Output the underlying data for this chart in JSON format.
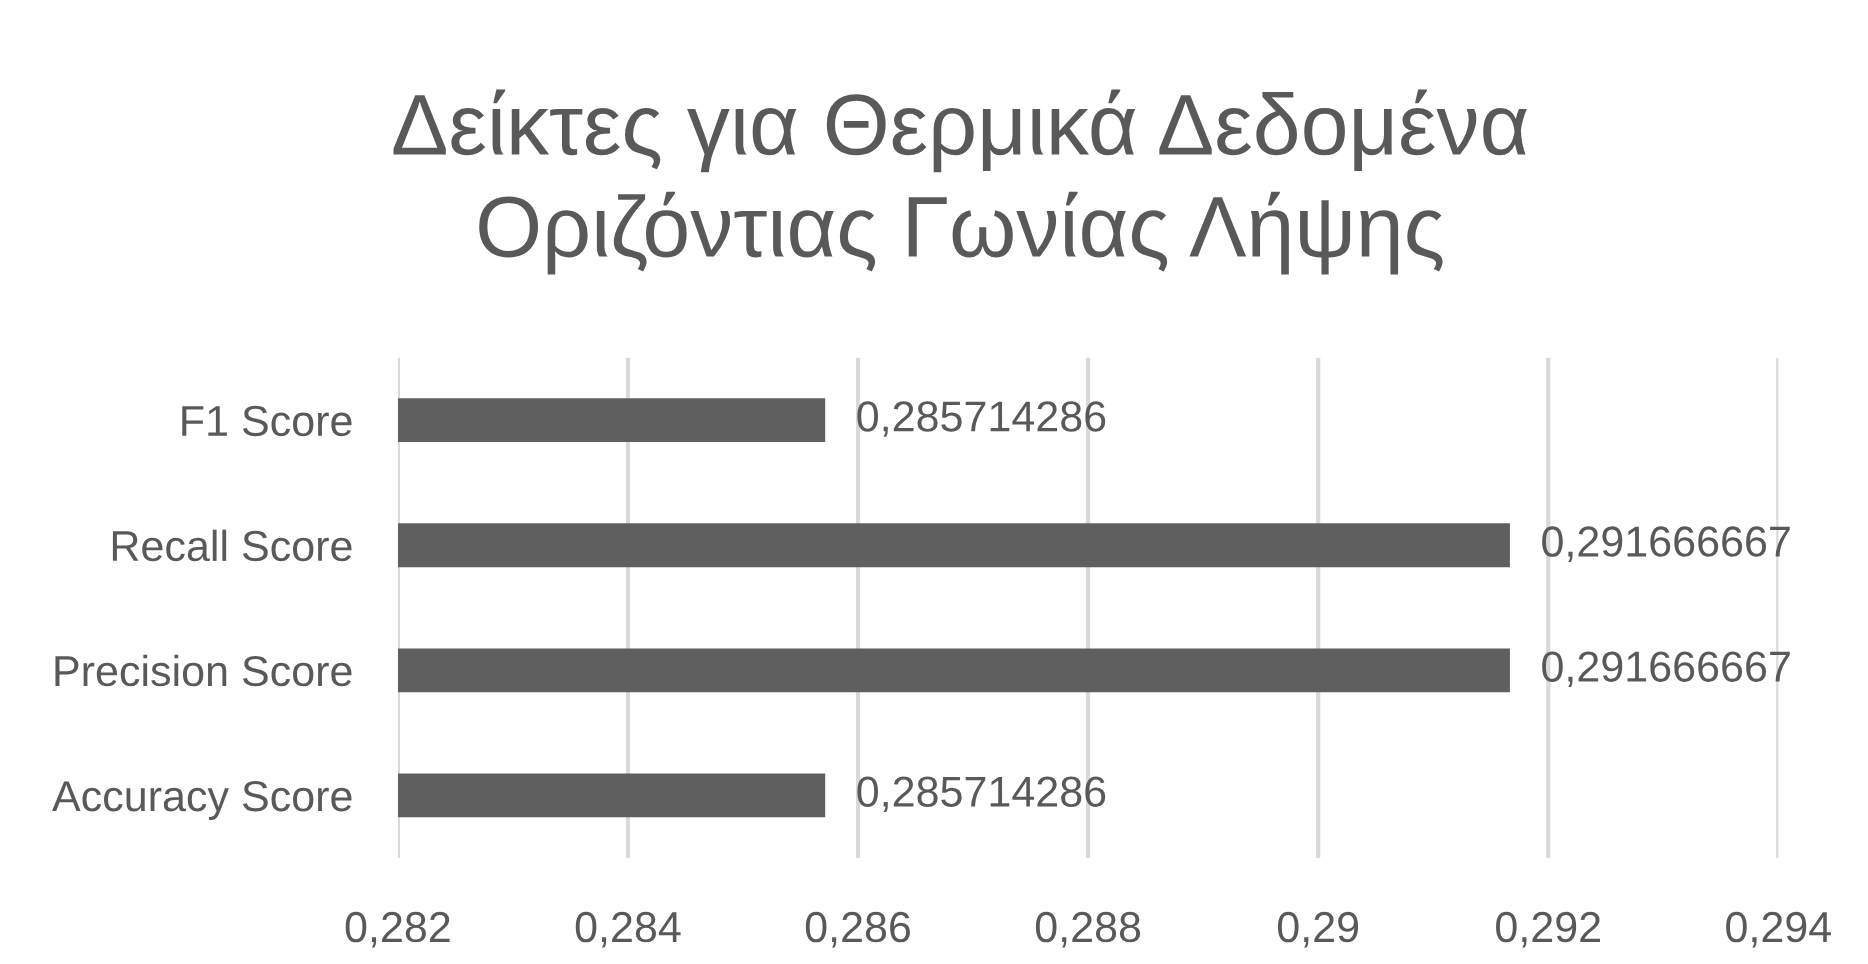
{
  "chart_data": {
    "type": "bar",
    "orientation": "horizontal",
    "title": "Δείκτες για Θερμικά Δεδομένα\nΟριζόντιας Γωνίας Λήψης",
    "categories": [
      "F1 Score",
      "Recall Score",
      "Precision Score",
      "Accuracy Score"
    ],
    "values": [
      0.285714286,
      0.291666667,
      0.291666667,
      0.285714286
    ],
    "value_labels": [
      "0,285714286",
      "0,291666667",
      "0,291666667",
      "0,285714286"
    ],
    "color": "#5f5f5f",
    "xlim": [
      0.282,
      0.294
    ],
    "xticks": [
      {
        "value": 0.282,
        "label": "0,282"
      },
      {
        "value": 0.284,
        "label": "0,284"
      },
      {
        "value": 0.286,
        "label": "0,286"
      },
      {
        "value": 0.288,
        "label": "0,288"
      },
      {
        "value": 0.29,
        "label": "0,29"
      },
      {
        "value": 0.292,
        "label": "0,292"
      },
      {
        "value": 0.294,
        "label": "0,294"
      }
    ],
    "grid": "x"
  }
}
